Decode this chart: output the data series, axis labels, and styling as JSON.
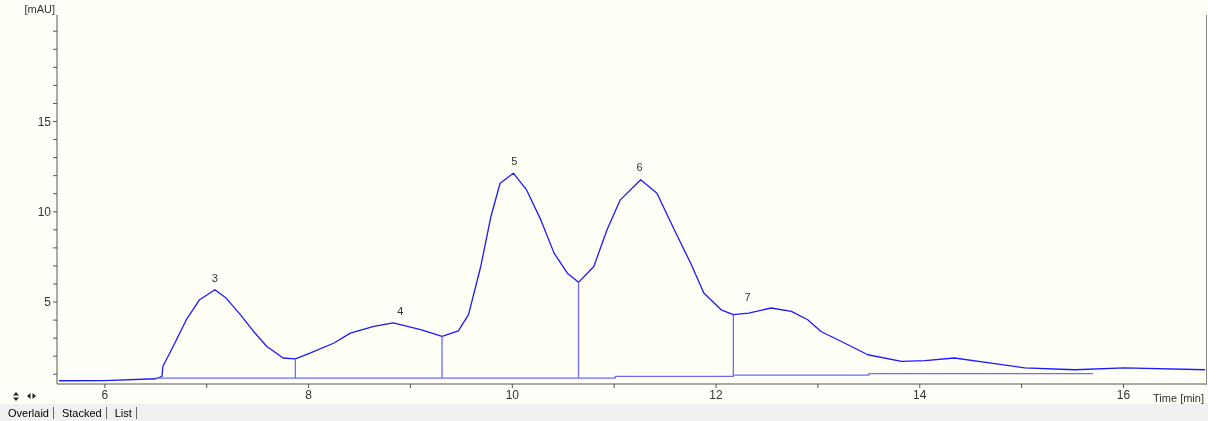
{
  "chart_data": {
    "type": "line",
    "xlabel": "Time [min]",
    "ylabel": "[mAU]",
    "xlim": [
      5.53,
      16.81
    ],
    "ylim": [
      0.46,
      20.9
    ],
    "xticks": [
      6,
      {
        "value": 7,
        "label": null
      },
      8,
      {
        "value": 9,
        "label": null
      },
      10,
      {
        "value": 11,
        "label": null
      },
      12,
      {
        "value": 13,
        "label": null
      },
      14,
      {
        "value": 15,
        "label": null
      },
      16
    ],
    "yticks": [
      {
        "value": 1,
        "label": null
      },
      {
        "value": 2,
        "label": null
      },
      {
        "value": 3,
        "label": null
      },
      {
        "value": 4,
        "label": null
      },
      5,
      {
        "value": 6,
        "label": null
      },
      {
        "value": 7,
        "label": null
      },
      {
        "value": 8,
        "label": null
      },
      {
        "value": 9,
        "label": null
      },
      10,
      {
        "value": 11,
        "label": null
      },
      {
        "value": 12,
        "label": null
      },
      {
        "value": 13,
        "label": null
      },
      {
        "value": 14,
        "label": null
      },
      15,
      {
        "value": 16,
        "label": null
      },
      {
        "value": 17,
        "label": null
      },
      {
        "value": 18,
        "label": null
      },
      {
        "value": 19,
        "label": null
      },
      {
        "value": 20,
        "label": null
      }
    ],
    "marker": "none",
    "line_style": "solid",
    "series": [
      {
        "color": "#1a1aff",
        "x": [
          5.55,
          6.0,
          6.5,
          6.56,
          6.57,
          6.67,
          6.8,
          6.93,
          7.08,
          7.19,
          7.33,
          7.46,
          7.59,
          7.75,
          7.87,
          8.02,
          8.25,
          8.41,
          8.64,
          8.83,
          8.9,
          9.1,
          9.31,
          9.47,
          9.57,
          9.69,
          9.79,
          9.88,
          10.01,
          10.14,
          10.28,
          10.41,
          10.54,
          10.65,
          10.8,
          10.93,
          11.06,
          11.26,
          11.42,
          11.59,
          11.75,
          11.88,
          12.05,
          12.17,
          12.32,
          12.54,
          12.74,
          12.9,
          13.03,
          13.26,
          13.49,
          13.82,
          14.05,
          14.34,
          14.7,
          15.03,
          15.52,
          16.01,
          16.8
        ],
        "values": [
          0.64,
          0.65,
          0.75,
          0.88,
          1.44,
          2.54,
          4.02,
          5.13,
          5.68,
          5.22,
          4.3,
          3.37,
          2.54,
          1.9,
          1.85,
          2.18,
          2.73,
          3.28,
          3.65,
          3.84,
          3.75,
          3.47,
          3.1,
          3.4,
          4.3,
          6.97,
          9.74,
          11.58,
          12.14,
          11.21,
          9.55,
          7.71,
          6.6,
          6.09,
          6.97,
          9.0,
          10.66,
          11.77,
          11.03,
          9.0,
          7.16,
          5.5,
          4.57,
          4.3,
          4.39,
          4.67,
          4.48,
          4.02,
          3.37,
          2.73,
          2.08,
          1.71,
          1.75,
          1.9,
          1.62,
          1.35,
          1.25,
          1.35,
          1.25
        ]
      },
      {
        "color": "#6b6bff",
        "x": [
          6.5,
          11.01,
          11.01,
          12.17,
          12.17,
          13.5,
          13.5,
          15.7
        ],
        "values": [
          0.79,
          0.79,
          0.88,
          0.88,
          0.95,
          0.95,
          1.03,
          1.03
        ]
      },
      {
        "color": "#6b6bff",
        "x": [
          7.87,
          7.87
        ],
        "values": [
          0.79,
          1.85
        ]
      },
      {
        "color": "#6b6bff",
        "x": [
          9.31,
          9.31
        ],
        "values": [
          0.79,
          3.1
        ]
      },
      {
        "color": "#6b6bff",
        "x": [
          10.65,
          10.65
        ],
        "values": [
          0.79,
          6.09
        ]
      },
      {
        "color": "#6b6bff",
        "x": [
          12.17,
          12.17
        ],
        "values": [
          0.88,
          4.3
        ]
      }
    ],
    "annotations": [
      {
        "text": "3",
        "x": 7.08,
        "y": 5.68
      },
      {
        "text": "4",
        "x": 8.9,
        "y": 3.85
      },
      {
        "text": "5",
        "x": 10.02,
        "y": 12.14
      },
      {
        "text": "6",
        "x": 11.25,
        "y": 11.8
      },
      {
        "text": "7",
        "x": 12.31,
        "y": 4.6
      },
      "Overlaid",
      "Stacked",
      "List"
    ]
  }
}
